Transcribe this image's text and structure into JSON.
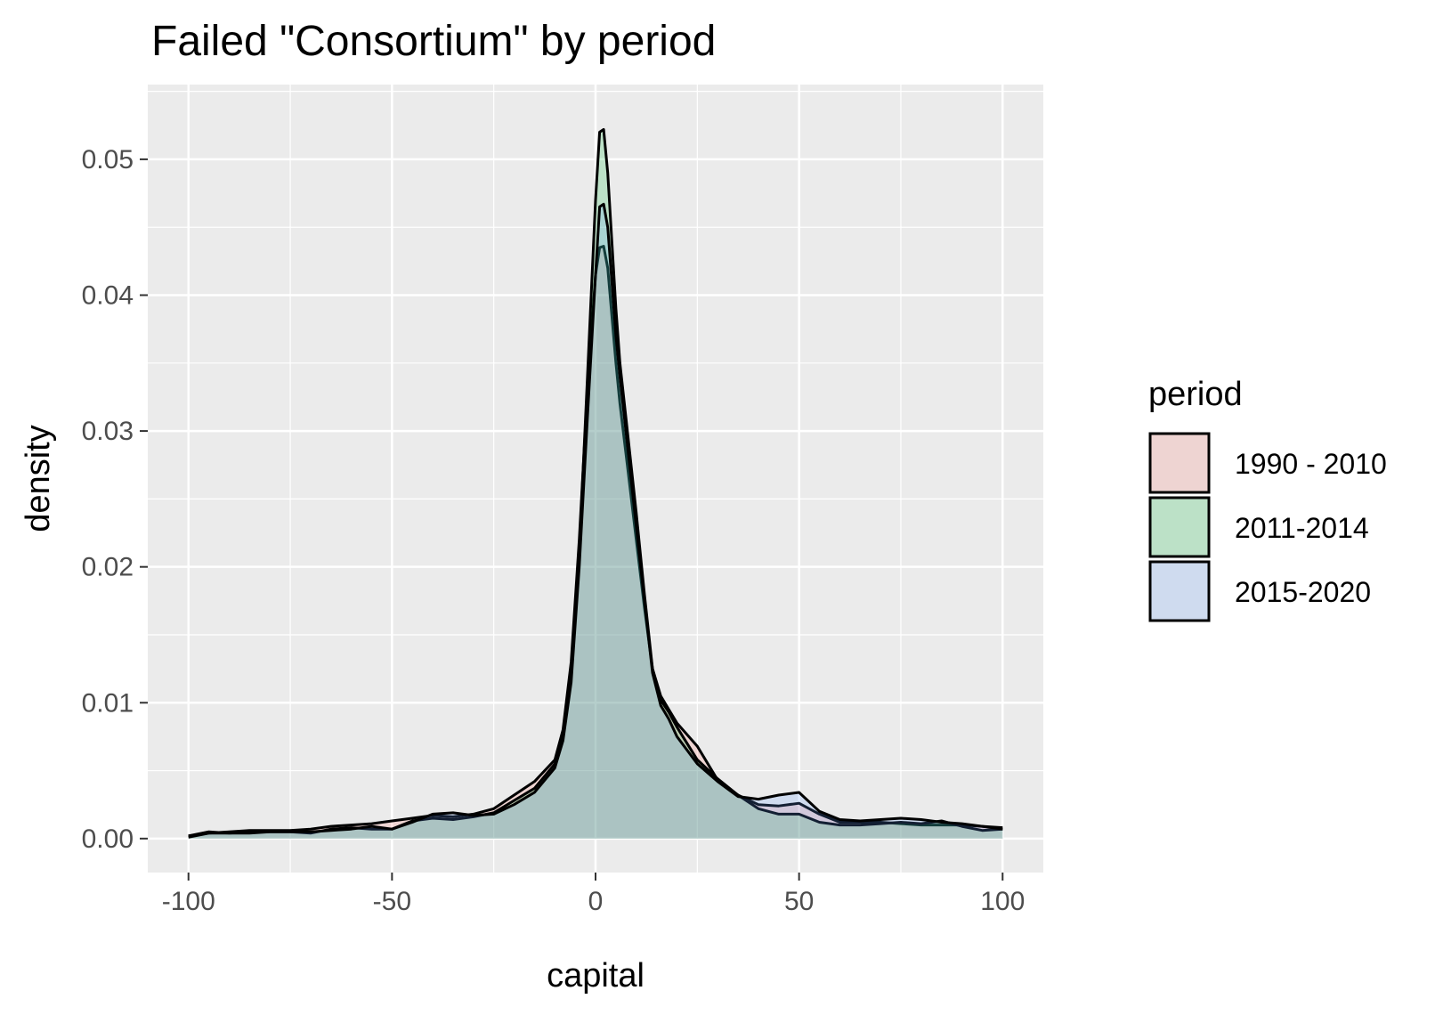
{
  "chart_data": {
    "type": "area",
    "title": "Failed \"Consortium\" by period",
    "xlabel": "capital",
    "ylabel": "density",
    "xlim": [
      -110,
      110
    ],
    "ylim": [
      -0.0025,
      0.0555
    ],
    "x_ticks": [
      -100,
      -50,
      0,
      50,
      100
    ],
    "x_tick_labels": [
      "-100",
      "-50",
      "0",
      "50",
      "100"
    ],
    "y_ticks": [
      0.0,
      0.01,
      0.02,
      0.03,
      0.04,
      0.05
    ],
    "y_tick_labels": [
      "0.00",
      "0.01",
      "0.02",
      "0.03",
      "0.04",
      "0.05"
    ],
    "grid": true,
    "panel_background": "#ebebeb",
    "grid_color": "#ffffff",
    "outline_color": "#000000",
    "fill_opacity": 0.2,
    "legend": {
      "title": "period",
      "position": "right"
    },
    "x": [
      -100,
      -95,
      -90,
      -85,
      -80,
      -75,
      -70,
      -65,
      -60,
      -55,
      -50,
      -45,
      -40,
      -35,
      -30,
      -25,
      -20,
      -15,
      -10,
      -8,
      -6,
      -4,
      -2,
      0,
      1,
      2,
      3,
      4,
      5,
      6,
      8,
      10,
      12,
      14,
      16,
      18,
      20,
      25,
      30,
      35,
      40,
      45,
      50,
      55,
      60,
      65,
      70,
      75,
      80,
      85,
      90,
      95,
      100
    ],
    "series": [
      {
        "name": "1990 - 2010",
        "color": "#f8766d",
        "values": [
          0.0002,
          0.0004,
          0.0005,
          0.0006,
          0.0006,
          0.0006,
          0.0007,
          0.0009,
          0.001,
          0.0011,
          0.0013,
          0.0015,
          0.0017,
          0.0016,
          0.0018,
          0.0022,
          0.0032,
          0.0042,
          0.0058,
          0.008,
          0.013,
          0.022,
          0.033,
          0.0415,
          0.0435,
          0.0436,
          0.042,
          0.0385,
          0.035,
          0.032,
          0.027,
          0.022,
          0.017,
          0.0125,
          0.0105,
          0.0095,
          0.0085,
          0.0068,
          0.0043,
          0.0032,
          0.0025,
          0.0024,
          0.0026,
          0.0018,
          0.0012,
          0.0012,
          0.0012,
          0.0011,
          0.001,
          0.001,
          0.001,
          0.0009,
          0.0008
        ]
      },
      {
        "name": "2011-2014",
        "color": "#00ba38",
        "values": [
          0.0002,
          0.0005,
          0.0004,
          0.0005,
          0.0005,
          0.0005,
          0.0004,
          0.0007,
          0.0008,
          0.0007,
          0.0007,
          0.0013,
          0.0015,
          0.0014,
          0.0016,
          0.0019,
          0.0028,
          0.0037,
          0.0055,
          0.0075,
          0.012,
          0.021,
          0.034,
          0.047,
          0.052,
          0.0522,
          0.049,
          0.044,
          0.039,
          0.035,
          0.0295,
          0.024,
          0.018,
          0.0125,
          0.0102,
          0.0093,
          0.0082,
          0.0058,
          0.0044,
          0.0032,
          0.0022,
          0.0018,
          0.0018,
          0.0012,
          0.001,
          0.001,
          0.0011,
          0.0012,
          0.0011,
          0.0013,
          0.0009,
          0.0006,
          0.0007
        ]
      },
      {
        "name": "2015-2020",
        "color": "#619cff",
        "values": [
          0.0001,
          0.0004,
          0.0004,
          0.0004,
          0.0005,
          0.0005,
          0.0005,
          0.0006,
          0.0007,
          0.0009,
          0.0007,
          0.0012,
          0.0018,
          0.0019,
          0.0017,
          0.0018,
          0.0025,
          0.0034,
          0.0052,
          0.0072,
          0.0115,
          0.02,
          0.031,
          0.0415,
          0.0465,
          0.0467,
          0.045,
          0.041,
          0.037,
          0.034,
          0.0285,
          0.023,
          0.0175,
          0.0122,
          0.0098,
          0.0088,
          0.0075,
          0.0055,
          0.0042,
          0.0031,
          0.0029,
          0.0032,
          0.0034,
          0.002,
          0.0014,
          0.0013,
          0.0014,
          0.0015,
          0.0014,
          0.0012,
          0.0011,
          0.0009,
          0.0007
        ]
      }
    ]
  }
}
